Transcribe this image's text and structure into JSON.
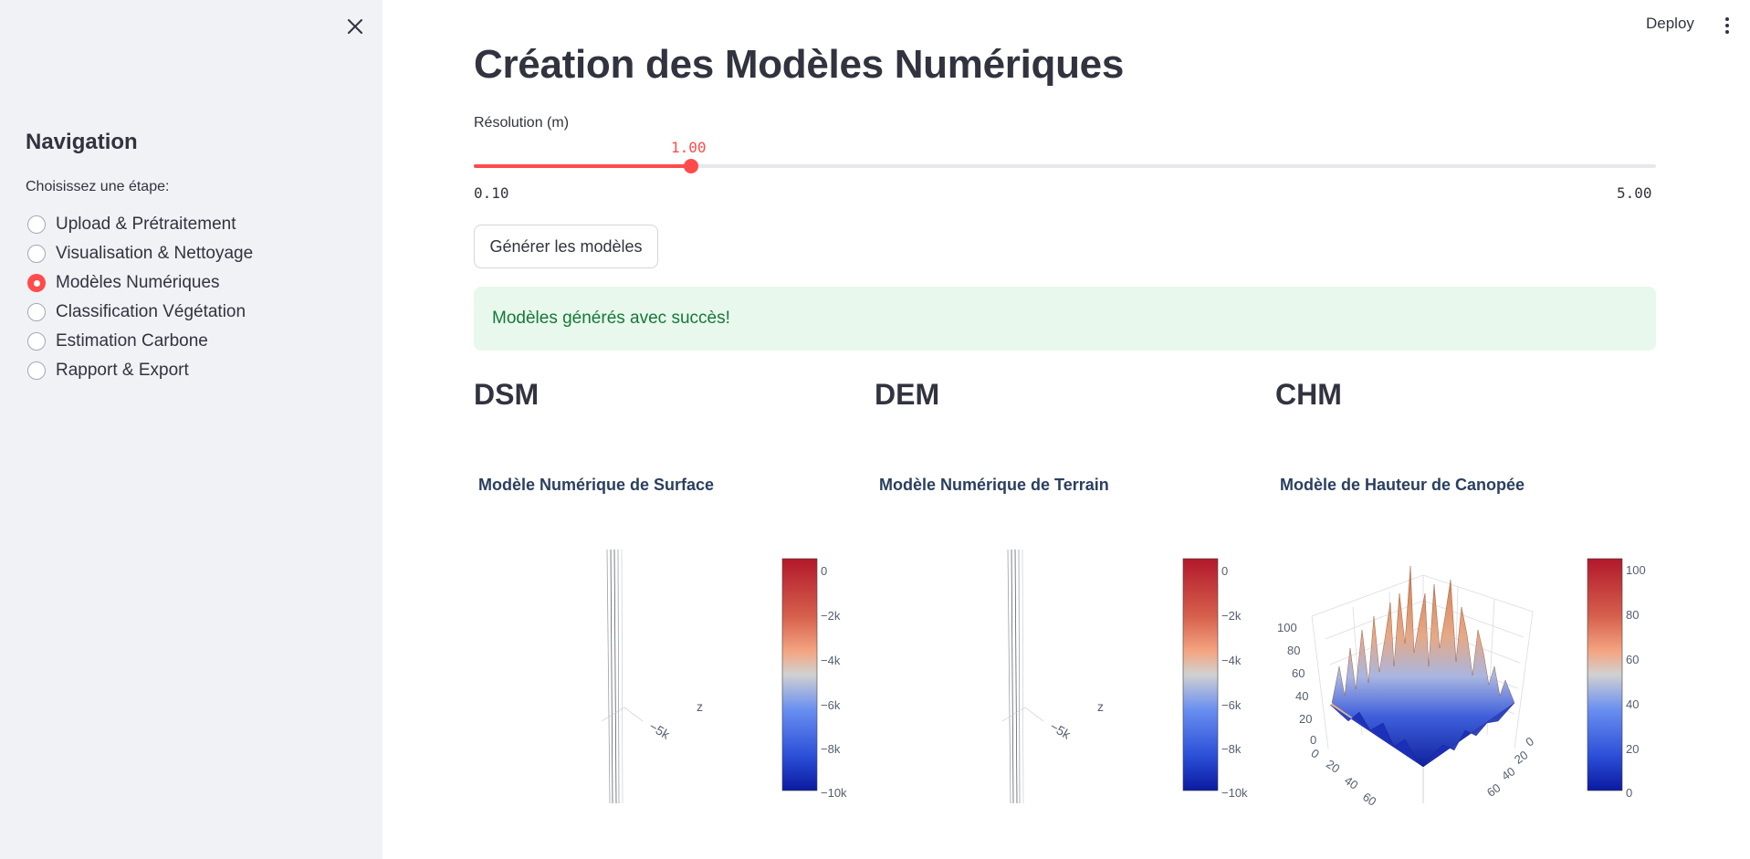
{
  "sidebar": {
    "title": "Navigation",
    "subtitle": "Choisissez une étape:",
    "items": [
      {
        "label": "Upload & Prétraitement",
        "checked": false
      },
      {
        "label": "Visualisation & Nettoyage",
        "checked": false
      },
      {
        "label": "Modèles Numériques",
        "checked": true
      },
      {
        "label": "Classification Végétation",
        "checked": false
      },
      {
        "label": "Estimation Carbone",
        "checked": false
      },
      {
        "label": "Rapport & Export",
        "checked": false
      }
    ]
  },
  "header": {
    "deploy_label": "Deploy"
  },
  "main": {
    "title": "Création des Modèles Numériques",
    "slider": {
      "label": "Résolution (m)",
      "value": "1.00",
      "min_label": "0.10",
      "max_label": "5.00",
      "value_num": 1.0,
      "min_num": 0.1,
      "max_num": 5.0
    },
    "generate_button": "Générer les modèles",
    "success_message": "Modèles générés avec succès!",
    "columns": [
      {
        "heading": "DSM",
        "plot_title": "Modèle Numérique de Surface",
        "colorbar_ticks": [
          "0",
          "−2k",
          "−4k",
          "−6k",
          "−8k",
          "−10k"
        ],
        "axis_label": "z",
        "axis_tick": "−5k"
      },
      {
        "heading": "DEM",
        "plot_title": "Modèle Numérique de Terrain",
        "colorbar_ticks": [
          "0",
          "−2k",
          "−4k",
          "−6k",
          "−8k",
          "−10k"
        ],
        "axis_label": "z",
        "axis_tick": "−5k"
      },
      {
        "heading": "CHM",
        "plot_title": "Modèle de Hauteur de Canopée",
        "colorbar_ticks": [
          "100",
          "80",
          "60",
          "40",
          "20",
          "0"
        ],
        "z_ticks": [
          "100",
          "80",
          "60",
          "40",
          "20",
          "0"
        ],
        "x_ticks": [
          "0",
          "20",
          "40",
          "60"
        ],
        "y_ticks": [
          "0",
          "20",
          "40",
          "60"
        ]
      }
    ]
  },
  "colors": {
    "accent": "#ff4b4b",
    "success_bg": "#e8f8ec",
    "success_text": "#17773a",
    "sidebar_bg": "#f0f2f6"
  }
}
